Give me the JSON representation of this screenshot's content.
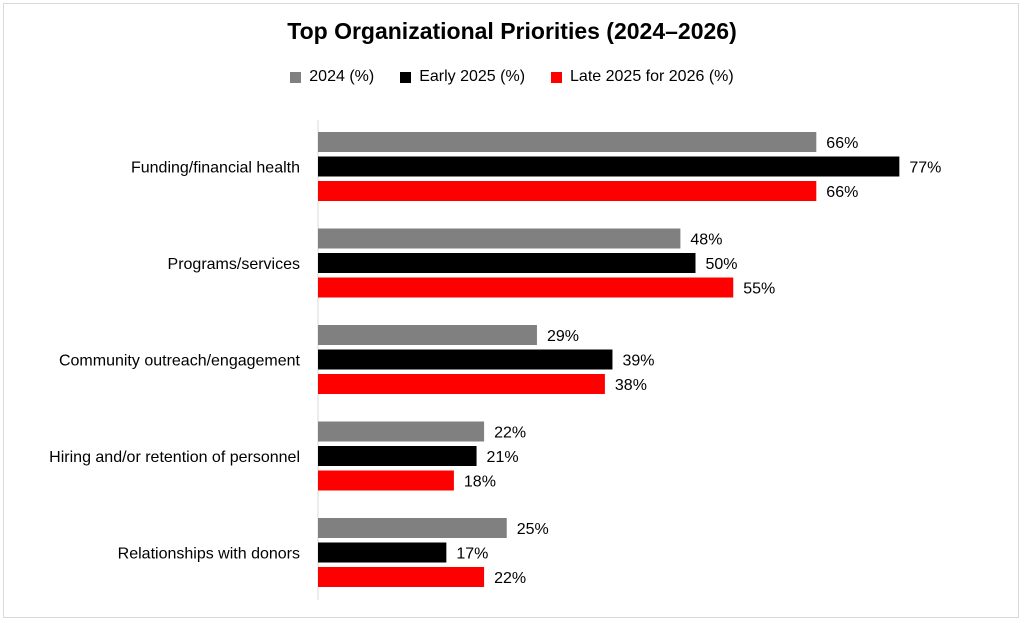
{
  "chart_data": {
    "type": "bar",
    "orientation": "horizontal",
    "title": "Top Organizational Priorities (2024–2026)",
    "categories": [
      "Funding/financial health",
      "Programs/services",
      "Community outreach/engagement",
      "Hiring and/or retention of personnel",
      "Relationships with donors"
    ],
    "series": [
      {
        "name": "2024 (%)",
        "color": "#808080",
        "values": [
          66,
          48,
          29,
          22,
          25
        ],
        "labels": [
          "66%",
          "48%",
          "29%",
          "22%",
          "25%"
        ]
      },
      {
        "name": "Early 2025 (%)",
        "color": "#000000",
        "values": [
          77,
          50,
          39,
          21,
          17
        ],
        "labels": [
          "77%",
          "50%",
          "39%",
          "21%",
          "17%"
        ]
      },
      {
        "name": "Late 2025 for 2026 (%)",
        "color": "#ff0000",
        "values": [
          66,
          55,
          38,
          18,
          22
        ],
        "labels": [
          "66%",
          "55%",
          "38%",
          "18%",
          "22%"
        ]
      }
    ],
    "legend_position": "top",
    "grid": false,
    "xlim": [
      0,
      100
    ]
  }
}
